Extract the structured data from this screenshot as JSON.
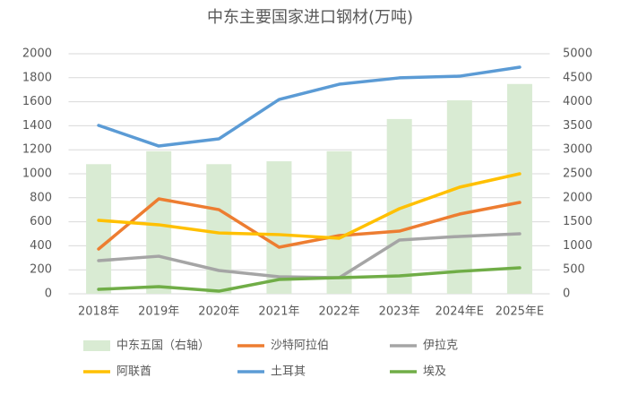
{
  "chart_data": {
    "type": "combo",
    "title": "中东主要国家进口钢材(万吨)",
    "categories": [
      "2018年",
      "2019年",
      "2020年",
      "2021年",
      "2022年",
      "2023年",
      "2024年E",
      "2025年E"
    ],
    "ylim": [
      0,
      2000
    ],
    "yticks": [
      0,
      200,
      400,
      600,
      800,
      1000,
      1200,
      1400,
      1600,
      1800,
      2000
    ],
    "y2lim": [
      0,
      5000
    ],
    "y2ticks": [
      0,
      500,
      1000,
      1500,
      2000,
      2500,
      3000,
      3500,
      4000,
      4500,
      5000
    ],
    "grid": true,
    "series": [
      {
        "name": "中东五国（右轴）",
        "type": "bar",
        "axis": "y2",
        "color": "#d9ebd3",
        "values": [
          2700,
          2970,
          2700,
          2760,
          2970,
          3640,
          4030,
          4370
        ]
      },
      {
        "name": "沙特阿拉伯",
        "type": "line",
        "color": "#ed7d31",
        "values": [
          373,
          791,
          701,
          388,
          485,
          522,
          664,
          761
        ]
      },
      {
        "name": "伊拉克",
        "type": "line",
        "color": "#a5a5a5",
        "values": [
          276,
          313,
          194,
          142,
          134,
          448,
          478,
          500
        ]
      },
      {
        "name": "阿联酋",
        "type": "line",
        "color": "#ffc000",
        "values": [
          612,
          575,
          507,
          493,
          463,
          709,
          888,
          1000
        ]
      },
      {
        "name": "土耳其",
        "type": "line",
        "color": "#5b9bd5",
        "values": [
          1403,
          1231,
          1291,
          1619,
          1746,
          1799,
          1813,
          1888
        ]
      },
      {
        "name": "埃及",
        "type": "line",
        "color": "#70ad47",
        "values": [
          37,
          60,
          22,
          119,
          134,
          149,
          187,
          216
        ]
      }
    ]
  }
}
